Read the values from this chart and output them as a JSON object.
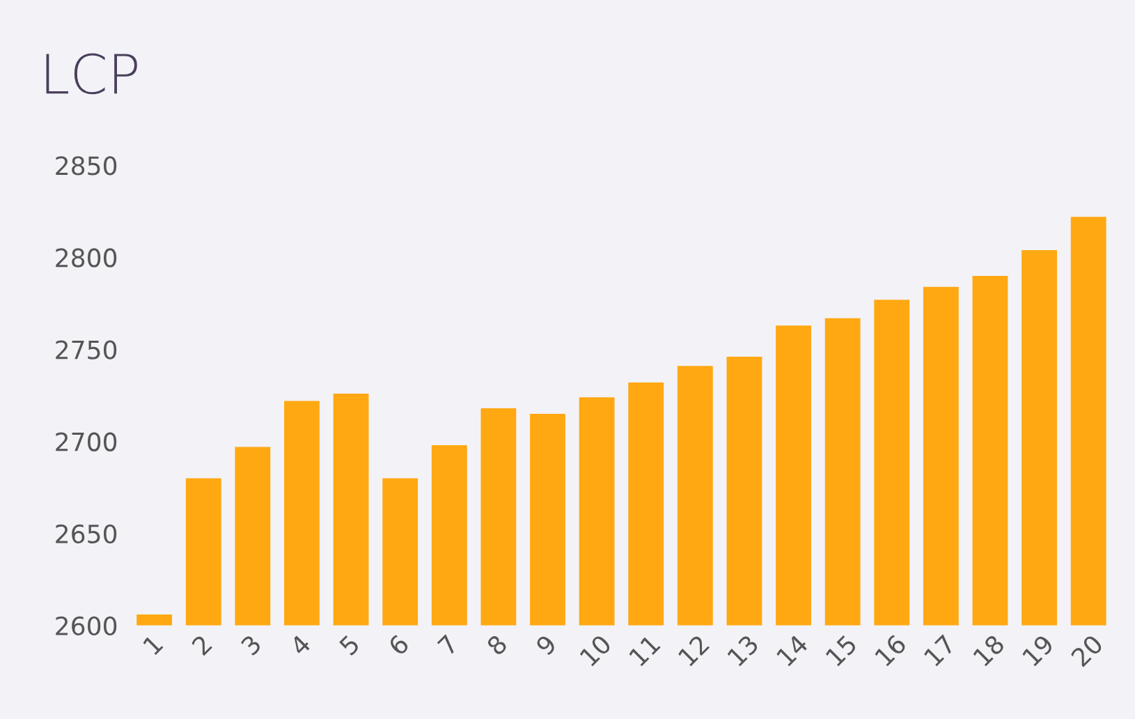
{
  "chart_data": {
    "type": "bar",
    "title": "LCP",
    "categories": [
      "1",
      "2",
      "3",
      "4",
      "5",
      "6",
      "7",
      "8",
      "9",
      "10",
      "11",
      "12",
      "13",
      "14",
      "15",
      "16",
      "17",
      "18",
      "19",
      "20"
    ],
    "values": [
      2606,
      2680,
      2697,
      2722,
      2726,
      2680,
      2698,
      2718,
      2715,
      2724,
      2732,
      2741,
      2746,
      2763,
      2767,
      2777,
      2784,
      2790,
      2804,
      2822
    ],
    "color": "#ffa812",
    "ylim": [
      2600,
      2850
    ],
    "yticks": [
      2600,
      2650,
      2700,
      2750,
      2800,
      2850
    ],
    "grid": false,
    "legend": false
  }
}
